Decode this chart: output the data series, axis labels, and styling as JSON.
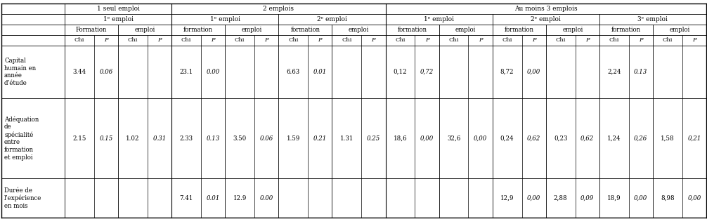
{
  "figsize": [
    10.06,
    3.12
  ],
  "dpi": 100,
  "background": "#ffffff",
  "row_labels": [
    "Capital\nhumain en\nannée\nd’étude",
    "Adéquation\nde\nspécialité\nentre\nformation\net emploi",
    "Durée de\nl’expérience\nen mois"
  ],
  "cell_data": {
    "row0": [
      "3.44",
      "0.06",
      "",
      "",
      "23.1",
      "0.00",
      "",
      "",
      "6.63",
      "0.01",
      "",
      "",
      "0,12",
      "0,72",
      "",
      "",
      "8,72",
      "0,00",
      "",
      "",
      "2,24",
      "0.13",
      "",
      ""
    ],
    "row1": [
      "2.15",
      "0.15",
      "1.02",
      "0.31",
      "2.33",
      "0.13",
      "3.50",
      "0.06",
      "1.59",
      "0.21",
      "1.31",
      "0.25",
      "18,6",
      "0,00",
      "32,6",
      "0,00",
      "0,24",
      "0,62",
      "0,23",
      "0,62",
      "1,24",
      "0,26",
      "1,58",
      "0,21"
    ],
    "row2": [
      "",
      "",
      "",
      "",
      "7.41",
      "0.01",
      "12.9",
      "0.00",
      "",
      "",
      "",
      "",
      "",
      "",
      "",
      "",
      "12,9",
      "0,00",
      "2,88",
      "0,09",
      "18,9",
      "0,00",
      "8,98",
      "0,00"
    ]
  },
  "text_fontsize": 6.2,
  "header_fontsize": 6.5,
  "label_fontsize": 6.2
}
